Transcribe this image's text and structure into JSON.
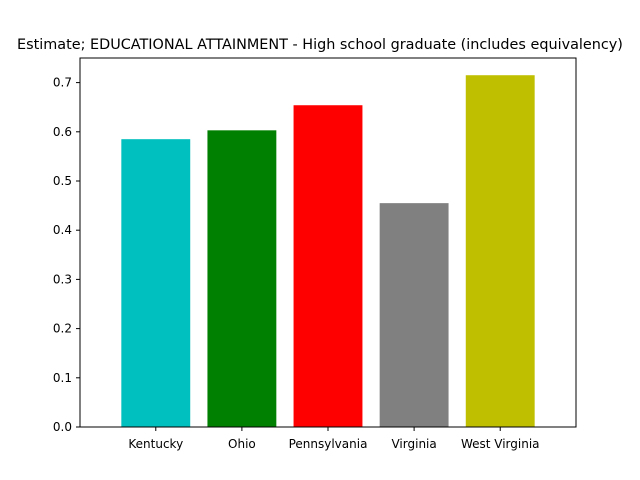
{
  "chart_data": {
    "type": "bar",
    "title": "Estimate; EDUCATIONAL ATTAINMENT - High school graduate (includes equivalency)",
    "xlabel": "",
    "ylabel": "",
    "categories": [
      "Kentucky",
      "Ohio",
      "Pennsylvania",
      "Virginia",
      "West Virginia"
    ],
    "values": [
      0.585,
      0.603,
      0.654,
      0.455,
      0.715
    ],
    "colors": [
      "#00bfbf",
      "#008000",
      "#ff0000",
      "#808080",
      "#bfbf00"
    ],
    "ylim": [
      0,
      0.75
    ],
    "yticks": [
      0.0,
      0.1,
      0.2,
      0.3,
      0.4,
      0.5,
      0.6,
      0.7
    ],
    "ytick_labels": [
      "0.0",
      "0.1",
      "0.2",
      "0.3",
      "0.4",
      "0.5",
      "0.6",
      "0.7"
    ],
    "grid": false,
    "legend": "none"
  }
}
